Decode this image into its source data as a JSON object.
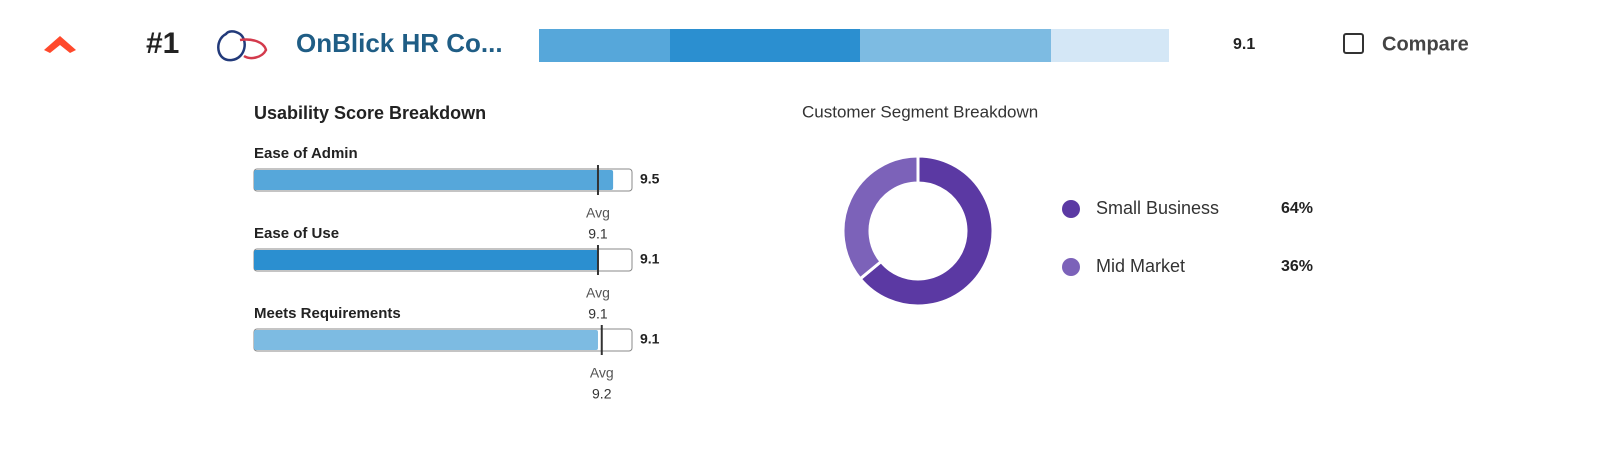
{
  "header": {
    "rank": "#1",
    "product_name": "OnBlick HR Co...",
    "overall_score": "9.1",
    "compare_label": "Compare"
  },
  "usability": {
    "title": "Usability Score Breakdown",
    "xlim": [
      0,
      10
    ],
    "color_avg_marker": "#333333",
    "items": [
      {
        "label": "Ease of Admin",
        "value": 9.5,
        "color": "#56a7da",
        "avg_label": "Avg",
        "avg": 9.1
      },
      {
        "label": "Ease of Use",
        "value": 9.1,
        "color": "#2b8fd0",
        "avg_label": "Avg",
        "avg": 9.1
      },
      {
        "label": "Meets Requirements",
        "value": 9.1,
        "color": "#7dbbe2",
        "avg_label": "Avg",
        "avg": 9.2
      }
    ]
  },
  "chart_data": {
    "type": "pie",
    "title": "Customer Segment Breakdown",
    "categories": [
      "Small Business",
      "Mid Market"
    ],
    "values": [
      64,
      36
    ],
    "value_labels": [
      "64%",
      "36%"
    ],
    "colors": [
      "#5b39a3",
      "#7c62b9"
    ]
  }
}
